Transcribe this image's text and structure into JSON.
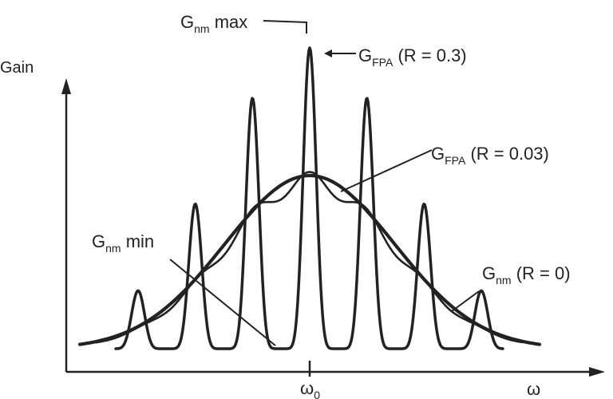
{
  "axes": {
    "y_label": "Gain",
    "x_label": "ω",
    "center_tick": {
      "base": "ω",
      "sub": "0"
    }
  },
  "annotations": {
    "gnm_max": {
      "base": "G",
      "sub": "nm",
      "suffix": " max"
    },
    "gfpa_r03": {
      "base": "G",
      "sub": "FPA",
      "suffix": " (R = 0.3)"
    },
    "gfpa_r003": {
      "base": "G",
      "sub": "FPA",
      "suffix": " (R = 0.03)"
    },
    "gnm_min": {
      "base": "G",
      "sub": "nm",
      "suffix": " min"
    },
    "gnm_r0": {
      "base": "G",
      "sub": "nm",
      "suffix": " (R = 0)"
    }
  },
  "colors": {
    "ink": "#222222",
    "background": "#ffffff"
  }
}
